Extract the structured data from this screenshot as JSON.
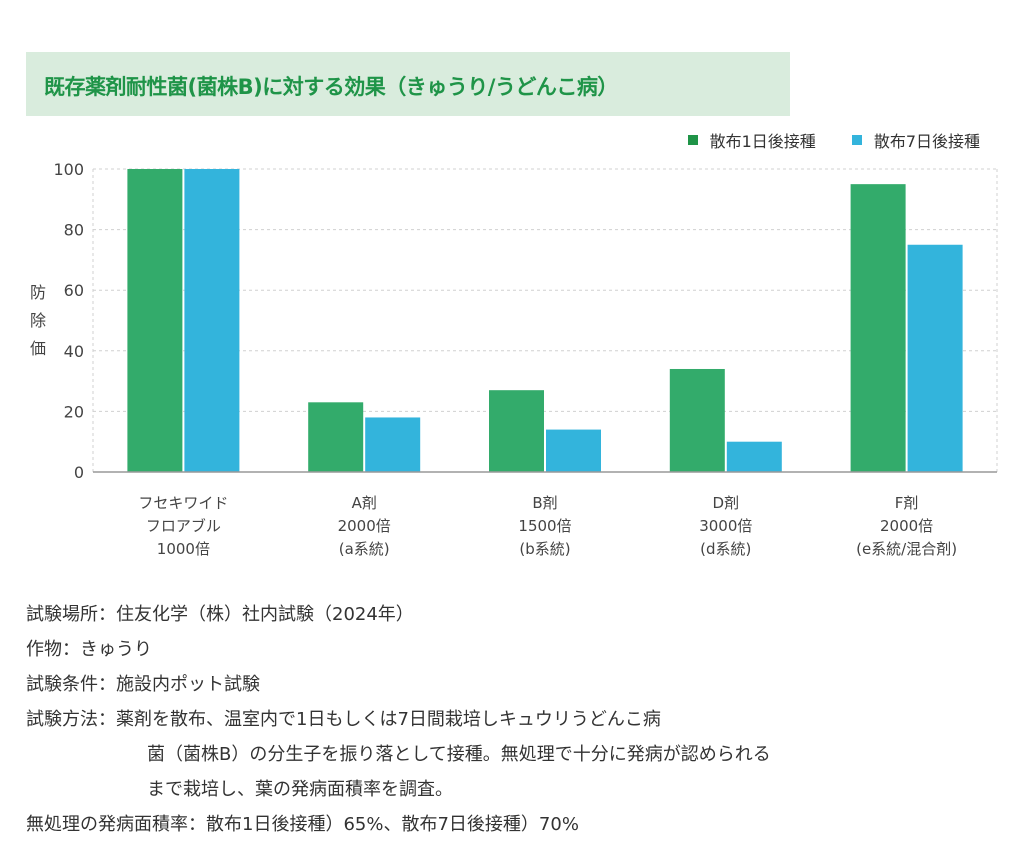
{
  "title": "既存薬剤耐性菌(菌株B)に対する効果（きゅうり/うどんこ病）",
  "chart_data": {
    "type": "bar",
    "title": "既存薬剤耐性菌(菌株B)に対する効果（きゅうり/うどんこ病）",
    "ylabel": "防除価",
    "xlabel": "",
    "ylim": [
      0,
      100
    ],
    "yticks": [
      0,
      20,
      40,
      60,
      80,
      100
    ],
    "grid": true,
    "legend_position": "top-right",
    "categories": [
      [
        "フセキワイド",
        "フロアブル",
        "1000倍"
      ],
      [
        "A剤",
        "2000倍",
        "(a系統)"
      ],
      [
        "B剤",
        "1500倍",
        "(b系統)"
      ],
      [
        "D剤",
        "3000倍",
        "(d系統)"
      ],
      [
        "F剤",
        "2000倍",
        "(e系統/混合剤)"
      ]
    ],
    "series": [
      {
        "name": "散布1日後接種",
        "color": "#33ab6b",
        "values": [
          100,
          23,
          27,
          34,
          95
        ]
      },
      {
        "name": "散布7日後接種",
        "color": "#33b4dc",
        "values": [
          100,
          18,
          14,
          10,
          75
        ]
      }
    ]
  },
  "notes": [
    {
      "label": "試験場所：",
      "text": "住友化学（株）社内試験（2024年）"
    },
    {
      "label": "作物：",
      "text": "きゅうり"
    },
    {
      "label": "試験条件：",
      "text": "施設内ポット試験"
    },
    {
      "label": "試験方法：",
      "text": "薬剤を散布、温室内で1日もしくは7日間栽培しキュウリうどんこ病"
    }
  ],
  "notes_cont": [
    "菌（菌株B）の分生子を振り落として接種。無処理で十分に発病が認められる",
    "まで栽培し、葉の発病面積率を調査。"
  ],
  "footer": "無処理の発病面積率：散布1日後接種）65%、散布7日後接種）70%"
}
